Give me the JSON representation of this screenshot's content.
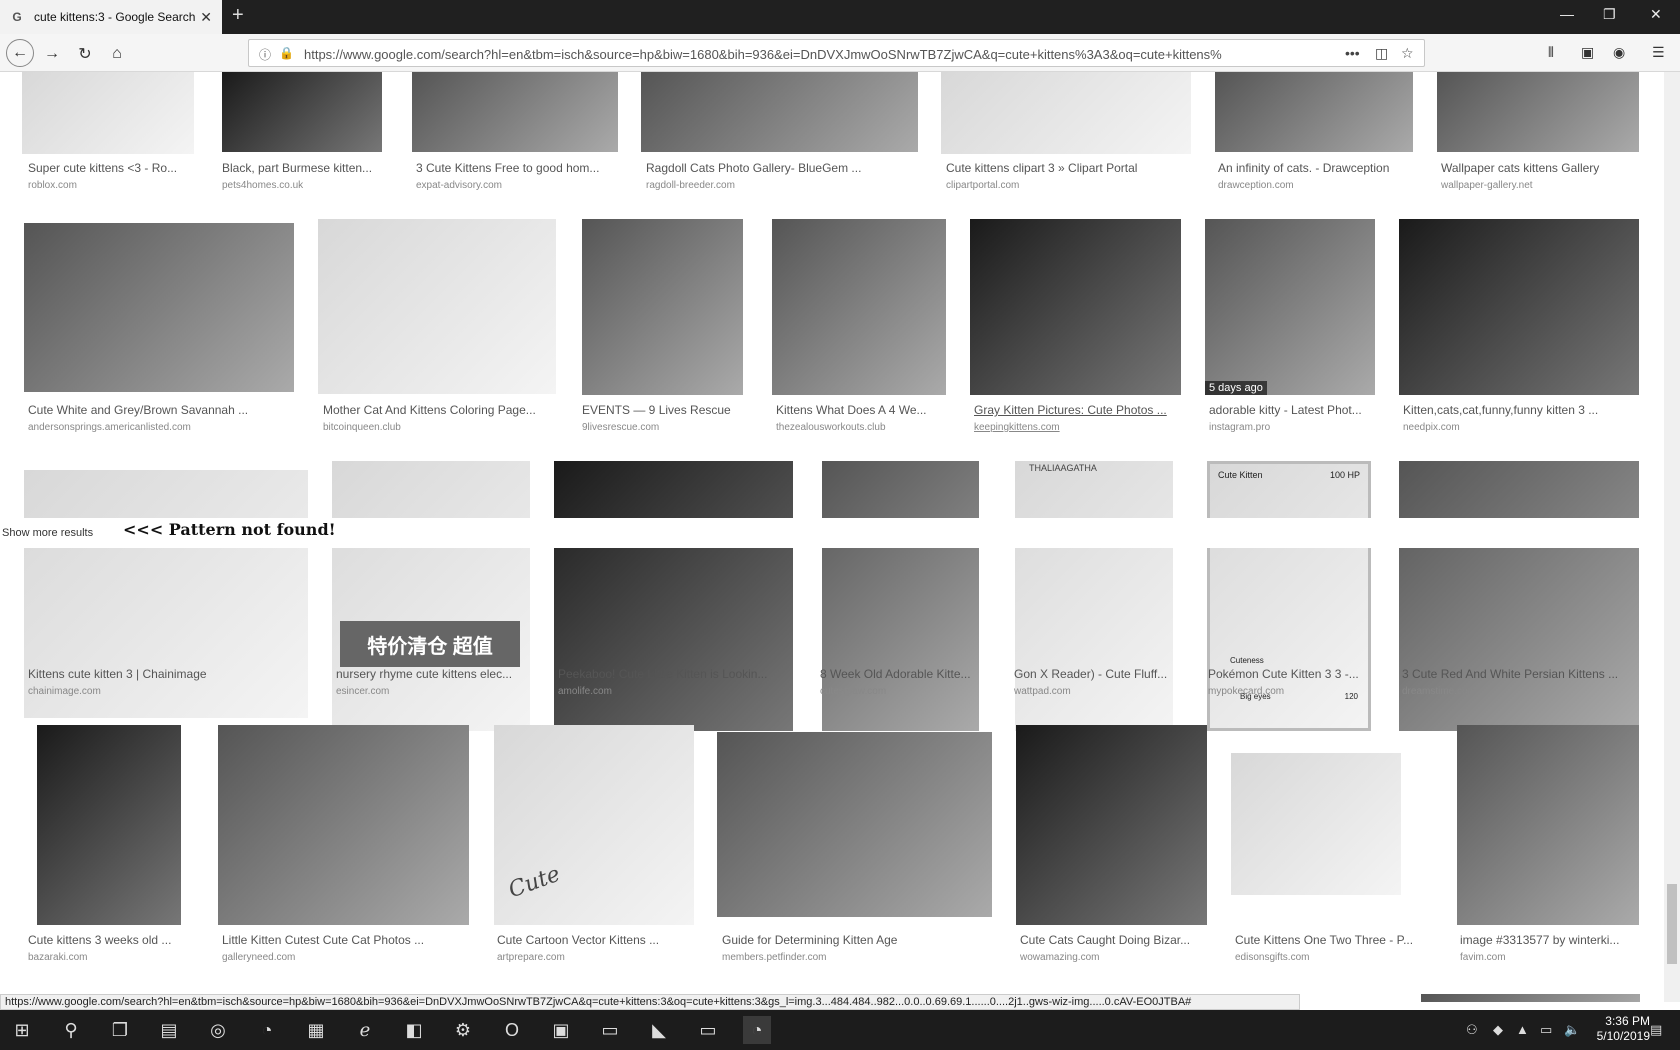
{
  "browser": {
    "tab_title": "cute kittens:3 - Google Search",
    "tab_favicon": "G",
    "url": "https://www.google.com/search?hl=en&tbm=isch&source=hp&biw=1680&bih=936&ei=DnDVXJmwOoSNrwTB7ZjwCA&q=cute+kittens%3A3&oq=cute+kittens%",
    "status_url": "https://www.google.com/search?hl=en&tbm=isch&source=hp&biw=1680&bih=936&ei=DnDVXJmwOoSNrwTB7ZjwCA&q=cute+kittens:3&oq=cute+kittens:3&gs_l=img.3...484.484..982...0.0..0.69.69.1......0....2j1..gws-wiz-img.....0.cAV-EO0JTBA#"
  },
  "show_more": {
    "label": "Show more results",
    "not_found": "<<< Pattern not found!"
  },
  "results": {
    "row1": [
      {
        "caption": "Super cute kittens <3 - Ro...",
        "source": "roblox.com"
      },
      {
        "caption": "Black, part Burmese kitten...",
        "source": "pets4homes.co.uk"
      },
      {
        "caption": "3 Cute Kittens Free to good hom...",
        "source": "expat-advisory.com"
      },
      {
        "caption": "Ragdoll Cats Photo Gallery- BlueGem ...",
        "source": "ragdoll-breeder.com"
      },
      {
        "caption": "Cute kittens clipart 3 » Clipart Portal",
        "source": "clipartportal.com"
      },
      {
        "caption": "An infinity of cats. - Drawception",
        "source": "drawception.com"
      },
      {
        "caption": "Wallpaper cats kittens Gallery",
        "source": "wallpaper-gallery.net"
      }
    ],
    "row2": [
      {
        "caption": "Cute White and Grey/Brown Savannah ...",
        "source": "andersonsprings.americanlisted.com"
      },
      {
        "caption": "Mother Cat And Kittens Coloring Page...",
        "source": "bitcoinqueen.club"
      },
      {
        "caption": "EVENTS — 9 Lives Rescue",
        "source": "9livesrescue.com"
      },
      {
        "caption": "Kittens What Does A 4 We...",
        "source": "thezealousworkouts.club"
      },
      {
        "caption": "Gray Kitten Pictures: Cute Photos ...",
        "source": "keepingkittens.com"
      },
      {
        "caption": "adorable kitty - Latest Phot...",
        "source": "instagram.pro",
        "badge": "5 days ago"
      },
      {
        "caption": "Kitten,cats,cat,funny,funny kitten 3 ...",
        "source": "needpix.com"
      }
    ],
    "row3": [
      {
        "caption": "Kittens cute kitten 3 | Chainimage",
        "source": "chainimage.com"
      },
      {
        "caption": "nursery rhyme cute kittens elec...",
        "source": "esincer.com",
        "overlay": "特价清仓 超值"
      },
      {
        "caption": "Peekaboo! Cute Little Kitten is Lookin...",
        "source": "amolife.com"
      },
      {
        "caption": "8 Week Old Adorable Kitte...",
        "source": "cutestpaw.com"
      },
      {
        "caption": "Gon X Reader) - Cute Fluff...",
        "source": "wattpad.com",
        "overlay": "THALIAAGATHA"
      },
      {
        "caption": "Pokémon Cute Kitten 3 3 -...",
        "source": "mypokecard.com",
        "card_title": "Cute Kitten",
        "card_hp": "100 HP",
        "card_cuteness": "Cuteness",
        "card_bigeyes": "Big eyes",
        "card_dmg": "120"
      },
      {
        "caption": "3 Cute Red And White Persian Kittens ...",
        "source": "dreamstime.com"
      }
    ],
    "row4": [
      {
        "caption": "Cute kittens 3 weeks old ...",
        "source": "bazaraki.com"
      },
      {
        "caption": "Little Kitten Cutest Cute Cat Photos ...",
        "source": "galleryneed.com"
      },
      {
        "caption": "Cute Cartoon Vector Kittens ...",
        "source": "artprepare.com",
        "overlay": "Cute"
      },
      {
        "caption": "Guide for Determining Kitten Age",
        "source": "members.petfinder.com"
      },
      {
        "caption": "Cute Cats Caught Doing Bizar...",
        "source": "wowamazing.com"
      },
      {
        "caption": "Cute Kittens One Two Three - P...",
        "source": "edisonsgifts.com"
      },
      {
        "caption": "image #3313577 by winterki...",
        "source": "favim.com"
      }
    ]
  },
  "clock": {
    "time": "3:36 PM",
    "date": "5/10/2019"
  }
}
